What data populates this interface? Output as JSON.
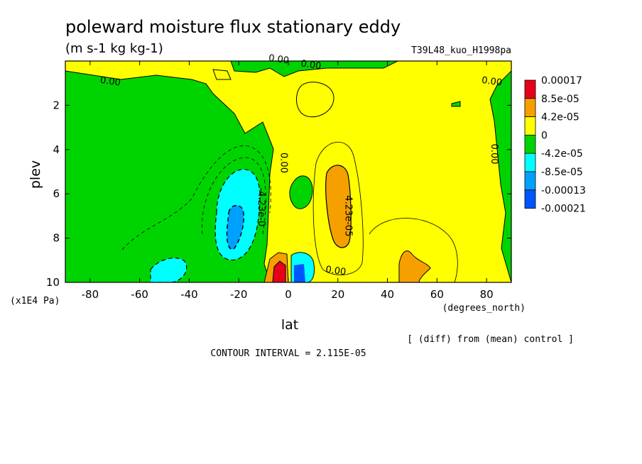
{
  "chart_data": {
    "type": "heatmap",
    "title": "poleward moisture flux stationary eddy",
    "units": "(m s-1 kg kg-1)",
    "run_label": "T39L48_kuo_H1998pa",
    "xlabel": "lat",
    "x_units": "(degrees_north)",
    "ylabel": "plev",
    "y_units": "(x1E4 Pa)",
    "xlim": [
      -90,
      90
    ],
    "ylim": [
      10,
      0
    ],
    "x_ticks": [
      -80,
      -60,
      -40,
      -20,
      0,
      20,
      40,
      60,
      80
    ],
    "y_ticks": [
      2,
      4,
      6,
      8,
      10
    ],
    "footer_note": "[ (diff) from (mean) control ]",
    "contour_interval": "CONTOUR INTERVAL = 2.115E-05",
    "legend": {
      "placement": "right",
      "labels": [
        "0.00017",
        "8.5e-05",
        "4.2e-05",
        "0",
        "-4.2e-05",
        "-8.5e-05",
        "-0.00013",
        "-0.00021"
      ],
      "colors": [
        "#e8001a",
        "#f5a000",
        "#ffff00",
        "#00d400",
        "#00ffff",
        "#00a0ff",
        "#0055ff"
      ]
    },
    "contour_labels": [
      {
        "text": "0.00",
        "lat": -72,
        "plev": 1.05
      },
      {
        "text": "0.00",
        "lat": -4,
        "plev": 0.05
      },
      {
        "text": "0.00",
        "lat": 9,
        "plev": 0.3
      },
      {
        "text": "0.00",
        "lat": 82,
        "plev": 1.05
      },
      {
        "text": "0.00",
        "lat": -3,
        "plev": 4.6
      },
      {
        "text": "0.00",
        "lat": 82,
        "plev": 4.2
      },
      {
        "text": "-4.23e-0",
        "lat": -12,
        "plev": 6.6
      },
      {
        "text": "4.23e-05",
        "lat": 23,
        "plev": 7.0
      },
      {
        "text": "0.00",
        "lat": 19,
        "plev": 9.6
      }
    ]
  }
}
